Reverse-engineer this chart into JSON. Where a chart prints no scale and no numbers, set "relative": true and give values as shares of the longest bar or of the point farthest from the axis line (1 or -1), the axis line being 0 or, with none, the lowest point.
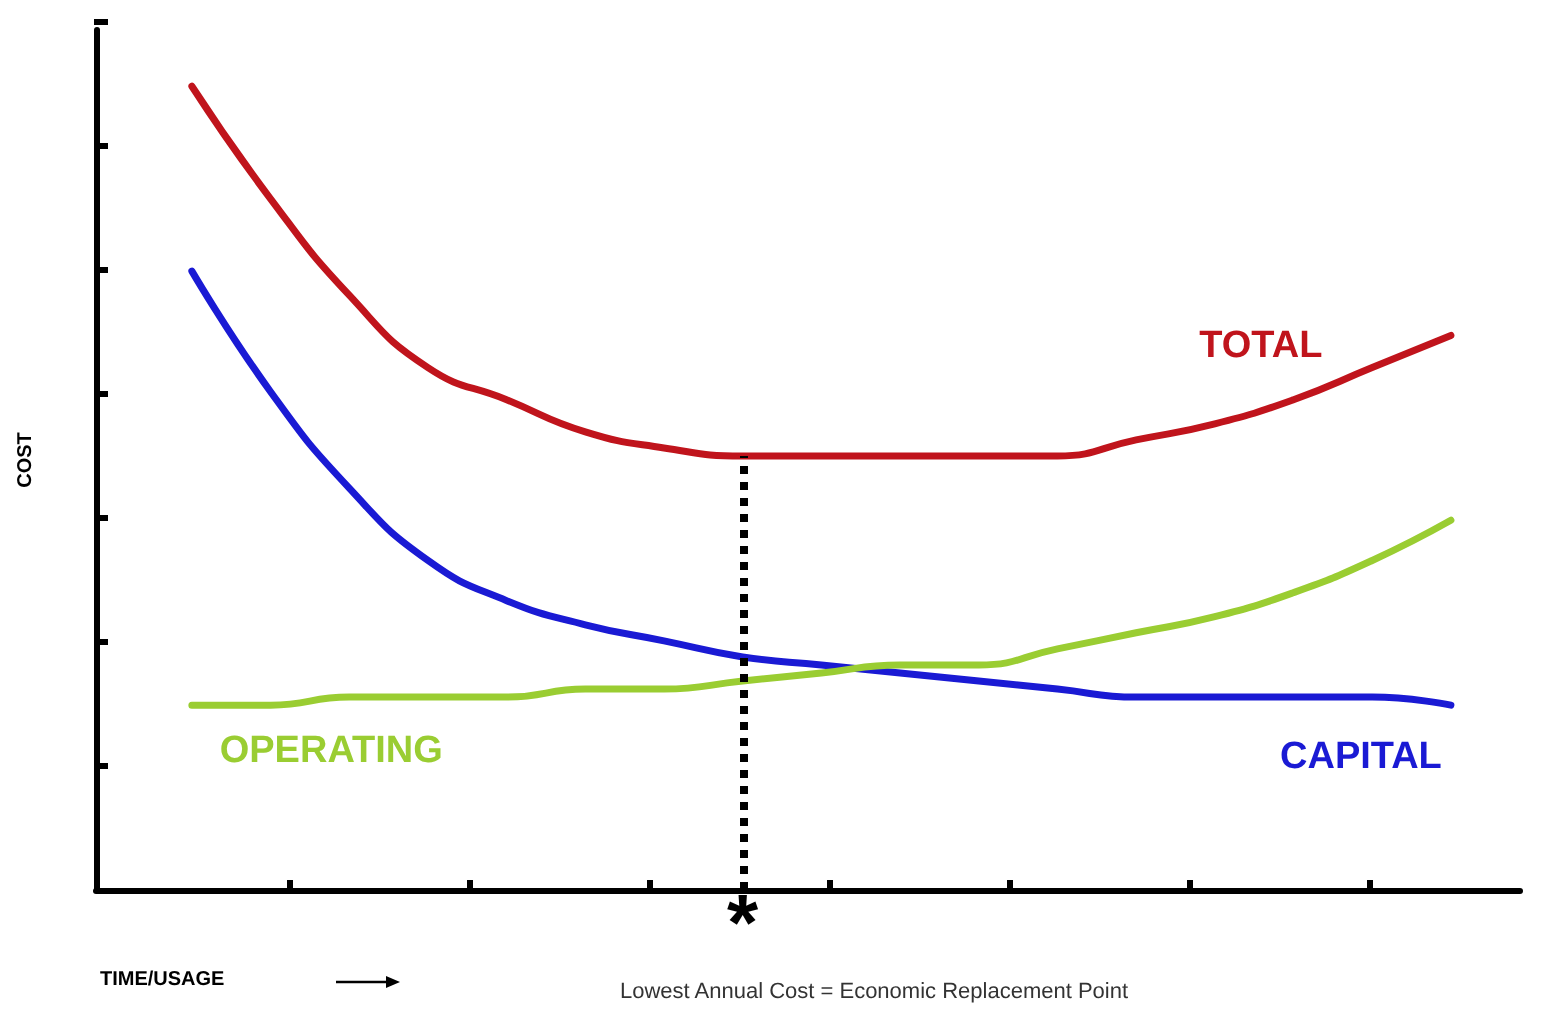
{
  "chart_data": {
    "type": "line",
    "relative": true,
    "xlabel": "TIME/USAGE",
    "ylabel": "COST",
    "categories": [
      null,
      null,
      null,
      null,
      null,
      null,
      null,
      null,
      null,
      null,
      null,
      null,
      null,
      null,
      null,
      null,
      null
    ],
    "series": [
      {
        "name": "TOTAL",
        "color": "#c0141c",
        "values": [
          1.0,
          0.86,
          0.74,
          0.65,
          0.61,
          0.57,
          0.55,
          0.54,
          0.54,
          0.54,
          0.54,
          0.54,
          0.56,
          0.58,
          0.61,
          0.65,
          0.69
        ]
      },
      {
        "name": "CAPITAL",
        "color": "#1a1ad4",
        "values": [
          0.77,
          0.62,
          0.5,
          0.41,
          0.36,
          0.33,
          0.31,
          0.29,
          0.28,
          0.27,
          0.26,
          0.25,
          0.24,
          0.24,
          0.24,
          0.24,
          0.23
        ]
      },
      {
        "name": "OPERATING",
        "color": "#9acd32",
        "values": [
          0.23,
          0.23,
          0.24,
          0.24,
          0.24,
          0.25,
          0.25,
          0.26,
          0.27,
          0.28,
          0.28,
          0.3,
          0.32,
          0.34,
          0.37,
          0.41,
          0.46
        ]
      }
    ],
    "annotations": [
      "*",
      "Lowest Annual Cost = Economic Replacement Point"
    ],
    "legend": false,
    "grid": false,
    "marker": "none",
    "line_style": "solid"
  }
}
